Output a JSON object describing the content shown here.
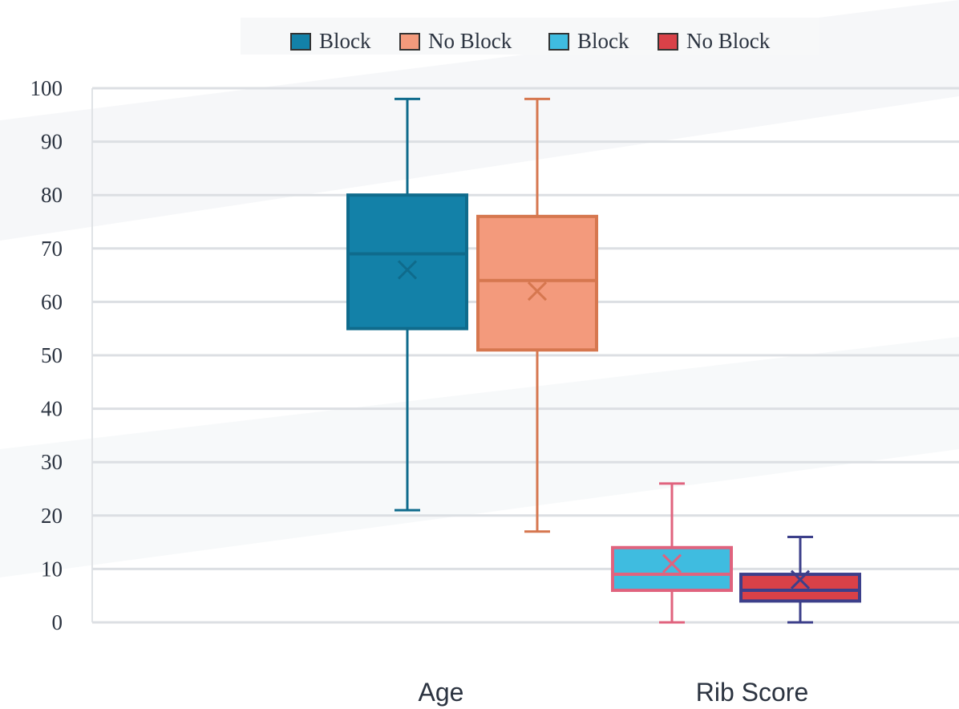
{
  "chart_data": {
    "type": "box",
    "categories": [
      "Age",
      "Rib Score"
    ],
    "ylim": [
      0,
      100
    ],
    "yticks": [
      0,
      10,
      20,
      30,
      40,
      50,
      60,
      70,
      80,
      90,
      100
    ],
    "grid": true,
    "legend_position": "top",
    "legend": [
      {
        "label": "Block",
        "color": "#1381a8"
      },
      {
        "label": "No Block",
        "color": "#f39a7c"
      },
      {
        "label": "Block",
        "color": "#3fbce0"
      },
      {
        "label": "No Block",
        "color": "#d94148"
      }
    ],
    "boxes": [
      {
        "category": "Age",
        "legend_index": 0,
        "min": 21,
        "q1": 55,
        "median": 69,
        "q3": 80,
        "max": 98,
        "mean": 66,
        "fill": "#1381a8",
        "stroke": "#0f6b8c"
      },
      {
        "category": "Age",
        "legend_index": 1,
        "min": 17,
        "q1": 51,
        "median": 64,
        "q3": 76,
        "max": 98,
        "mean": 62,
        "fill": "#f39a7c",
        "stroke": "#d6774f"
      },
      {
        "category": "Rib Score",
        "legend_index": 2,
        "min": 0,
        "q1": 6,
        "median": 9,
        "q3": 14,
        "max": 26,
        "mean": 11,
        "fill": "#3fbce0",
        "stroke": "#e0637e"
      },
      {
        "category": "Rib Score",
        "legend_index": 3,
        "min": 0,
        "q1": 4,
        "median": 6,
        "q3": 9,
        "max": 16,
        "mean": 8,
        "fill": "#d94148",
        "stroke": "#3c3f8a"
      }
    ]
  }
}
